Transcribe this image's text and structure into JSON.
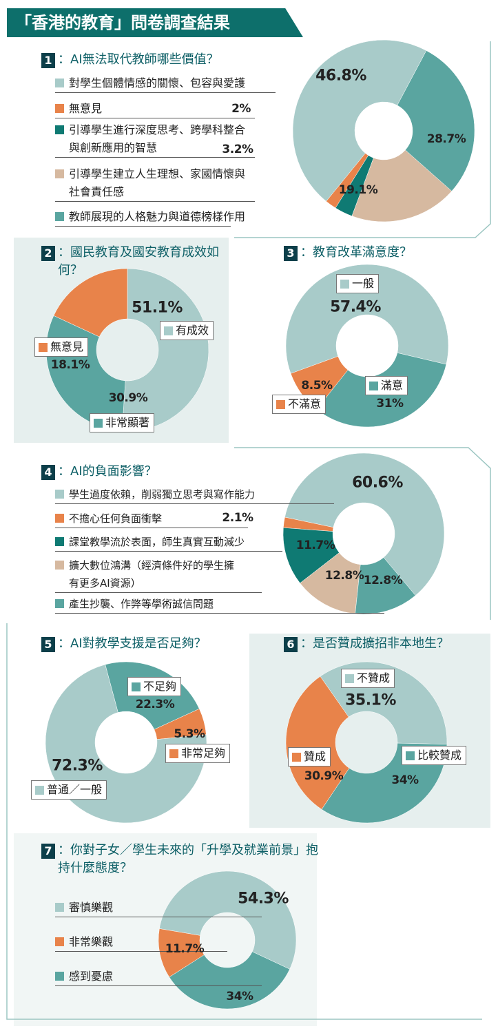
{
  "header": {
    "title": "「香港的教育」問卷調查結果"
  },
  "chart_data": [
    {
      "type": "pie",
      "number": "1",
      "title": "：AI無法取代教師哪些價值？",
      "categories": [
        "對學生個體情感的關懷、包容與愛護",
        "無意見",
        "引導學生進行深度思考、跨學科整合與創新應用的智慧",
        "引導學生建立人生理想、家國情懷與社會責任感",
        "教師展現的人格魅力與道德榜樣作用"
      ],
      "values": [
        46.8,
        2,
        3.2,
        19.1,
        28.7
      ],
      "value_labels": [
        "46.8%",
        "2%",
        "3.2%",
        "19.1%",
        "28.7%"
      ],
      "colors": [
        "#a8cbc9",
        "#e8834a",
        "#0f7a73",
        "#d6b9a0",
        "#5aa5a0"
      ]
    },
    {
      "type": "pie",
      "number": "2",
      "title": "：國民教育及國安教育成效如何？",
      "categories": [
        "有成效",
        "非常顯著",
        "無意見"
      ],
      "values": [
        51.1,
        30.9,
        18.1
      ],
      "value_labels": [
        "51.1%",
        "30.9%",
        "18.1%"
      ],
      "colors": [
        "#a8cbc9",
        "#5aa5a0",
        "#e8834a"
      ]
    },
    {
      "type": "pie",
      "number": "3",
      "title": "：教育改革滿意度？",
      "categories": [
        "一般",
        "滿意",
        "不滿意"
      ],
      "values": [
        57.4,
        31,
        8.5
      ],
      "value_labels": [
        "57.4%",
        "31%",
        "8.5%"
      ],
      "colors": [
        "#a8cbc9",
        "#5aa5a0",
        "#e8834a"
      ]
    },
    {
      "type": "pie",
      "number": "4",
      "title": "：AI的負面影響？",
      "categories": [
        "學生過度依賴，削弱獨立思考與寫作能力",
        "不擔心任何負面衝擊",
        "課堂教學流於表面，師生真實互動減少",
        "擴大數位鴻溝（經濟條件好的學生擁有更多AI資源）",
        "產生抄襲、作弊等學術誠信問題"
      ],
      "values": [
        60.6,
        2.1,
        11.7,
        12.8,
        12.8
      ],
      "value_labels": [
        "60.6%",
        "2.1%",
        "11.7%",
        "12.8%",
        "12.8%"
      ],
      "colors": [
        "#a8cbc9",
        "#e8834a",
        "#0f7a73",
        "#d6b9a0",
        "#5aa5a0"
      ]
    },
    {
      "type": "pie",
      "number": "5",
      "title": "：AI對教學支援是否足夠？",
      "categories": [
        "不足夠",
        "非常足夠",
        "普通／一般"
      ],
      "values": [
        22.3,
        5.3,
        72.3
      ],
      "value_labels": [
        "22.3%",
        "5.3%",
        "72.3%"
      ],
      "colors": [
        "#5aa5a0",
        "#e8834a",
        "#a8cbc9"
      ]
    },
    {
      "type": "pie",
      "number": "6",
      "title": "：是否贊成擴招非本地生？",
      "categories": [
        "不贊成",
        "比較贊成",
        "贊成"
      ],
      "values": [
        35.1,
        34,
        30.9
      ],
      "value_labels": [
        "35.1%",
        "34%",
        "30.9%"
      ],
      "colors": [
        "#a8cbc9",
        "#5aa5a0",
        "#e8834a"
      ]
    },
    {
      "type": "pie",
      "number": "7",
      "title": "：你對子女／學生未來的「升學及就業前景」抱持什麼態度？",
      "categories": [
        "審慎樂觀",
        "非常樂觀",
        "感到憂慮"
      ],
      "values": [
        54.3,
        11.7,
        34
      ],
      "value_labels": [
        "54.3%",
        "11.7%",
        "34%"
      ],
      "colors": [
        "#a8cbc9",
        "#e8834a",
        "#5aa5a0"
      ]
    }
  ]
}
